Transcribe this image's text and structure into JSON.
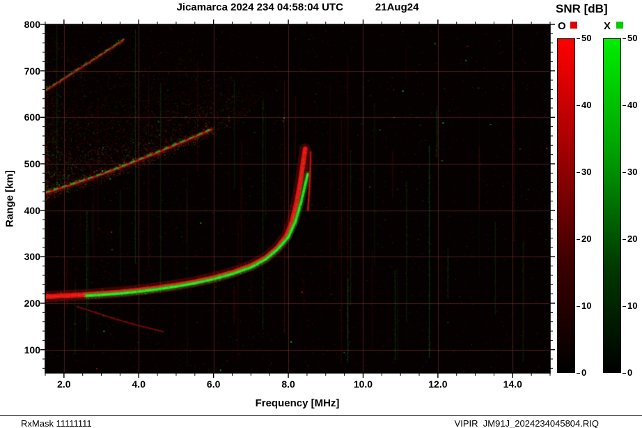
{
  "header": {
    "title": "Jicamarca 2024 234 04:58:04 UTC",
    "date": "21Aug24"
  },
  "colorbar": {
    "title": "SNR [dB]",
    "min": 0,
    "max": 50,
    "ticks": [
      0,
      10,
      20,
      30,
      40,
      50
    ],
    "bars": [
      {
        "label": "O",
        "chip": "#dd0000",
        "gradient": [
          "#000000 0%",
          "#3a0000 32%",
          "#a00000 66%",
          "#ff0000 100%"
        ]
      },
      {
        "label": "X",
        "chip": "#00cc00",
        "gradient": [
          "#000000 0%",
          "#003a00 32%",
          "#00a000 66%",
          "#00ee00 100%"
        ]
      }
    ]
  },
  "footer": {
    "left": "RxMask 11111111",
    "right": "VIPIR  JM91J_2024234045804.RIQ"
  },
  "chart_data": {
    "type": "heatmap",
    "title": "Jicamarca 2024 234 04:58:04 UTC 21Aug24",
    "xlabel": "Frequency [MHz]",
    "ylabel": "Range [km]",
    "xlim": [
      1.5,
      15.0
    ],
    "ylim": [
      50,
      800
    ],
    "x_minor_step": 0.5,
    "y_minor_step": 20,
    "xticks": [
      {
        "value": 2.0,
        "label": "2.0"
      },
      {
        "value": 4.0,
        "label": "4.0"
      },
      {
        "value": 6.0,
        "label": "6.0"
      },
      {
        "value": 8.0,
        "label": "8.0"
      },
      {
        "value": 10.0,
        "label": "10.0"
      },
      {
        "value": 12.0,
        "label": "12.0"
      },
      {
        "value": 14.0,
        "label": "14.0"
      }
    ],
    "yticks": [
      {
        "value": 100,
        "label": "100"
      },
      {
        "value": 200,
        "label": "200"
      },
      {
        "value": 300,
        "label": "300"
      },
      {
        "value": 400,
        "label": "400"
      },
      {
        "value": 500,
        "label": "500"
      },
      {
        "value": 600,
        "label": "600"
      },
      {
        "value": 700,
        "label": "700"
      },
      {
        "value": 800,
        "label": "800"
      }
    ],
    "grid": true,
    "grid_color": "rgba(150,65,60,0.45)",
    "background": "#060101",
    "noise": {
      "seed": 1234,
      "speckles": 7000,
      "streaks": 60,
      "sparse_bright": 30
    },
    "series": [
      {
        "name": "second-hop echo",
        "mode": "mixed",
        "color": "#aa1414",
        "width": 3,
        "scatter": 7,
        "alpha": 0.8,
        "overlay_color": "#22bb22",
        "overlay_width": 2,
        "overlay_alpha": 0.8,
        "points": [
          [
            1.5,
            437
          ],
          [
            2.0,
            450
          ],
          [
            2.5,
            463
          ],
          [
            3.0,
            477
          ],
          [
            3.5,
            492
          ],
          [
            4.0,
            508
          ],
          [
            4.5,
            524
          ],
          [
            5.0,
            541
          ],
          [
            5.5,
            558
          ],
          [
            5.95,
            574
          ]
        ]
      },
      {
        "name": "third-hop echo",
        "mode": "mixed",
        "color": "#991111",
        "width": 2.5,
        "scatter": 5,
        "alpha": 0.75,
        "overlay_color": "#1faa1f",
        "overlay_width": 1.5,
        "overlay_alpha": 0.65,
        "points": [
          [
            1.5,
            657
          ],
          [
            2.0,
            683
          ],
          [
            2.5,
            709
          ],
          [
            3.0,
            735
          ],
          [
            3.4,
            756
          ],
          [
            3.6,
            767
          ]
        ]
      },
      {
        "name": "descending low echo",
        "mode": "O",
        "color": "#7d100e",
        "width": 1.5,
        "scatter": 2.5,
        "alpha": 0.55,
        "points": [
          [
            2.35,
            193
          ],
          [
            2.8,
            181
          ],
          [
            3.3,
            168
          ],
          [
            3.8,
            156
          ],
          [
            4.3,
            146
          ],
          [
            4.65,
            139
          ]
        ]
      },
      {
        "name": "F-layer O-mode echo",
        "mode": "O",
        "color": "#dd1111",
        "width": 7,
        "scatter": 6,
        "alpha": 1,
        "speck_green": 0.22,
        "points": [
          [
            1.5,
            214
          ],
          [
            2.0,
            216
          ],
          [
            2.5,
            218
          ],
          [
            3.0,
            221
          ],
          [
            3.5,
            224
          ],
          [
            4.0,
            228
          ],
          [
            4.5,
            233
          ],
          [
            5.0,
            239
          ],
          [
            5.5,
            246
          ],
          [
            6.0,
            255
          ],
          [
            6.5,
            266
          ],
          [
            7.0,
            281
          ],
          [
            7.4,
            298
          ],
          [
            7.7,
            319
          ],
          [
            7.95,
            345
          ],
          [
            8.1,
            376
          ],
          [
            8.22,
            415
          ],
          [
            8.32,
            460
          ],
          [
            8.4,
            505
          ],
          [
            8.45,
            532
          ]
        ]
      },
      {
        "name": "F-layer X-mode echo",
        "mode": "X",
        "color": "#1ed41e",
        "width": 4,
        "scatter": 3.5,
        "alpha": 0.95,
        "points": [
          [
            2.6,
            216
          ],
          [
            3.0,
            218
          ],
          [
            3.5,
            221
          ],
          [
            4.0,
            225
          ],
          [
            4.5,
            230
          ],
          [
            5.0,
            236
          ],
          [
            5.5,
            243
          ],
          [
            6.0,
            252
          ],
          [
            6.5,
            263
          ],
          [
            7.0,
            277
          ],
          [
            7.4,
            295
          ],
          [
            7.7,
            315
          ],
          [
            8.0,
            342
          ],
          [
            8.2,
            378
          ],
          [
            8.35,
            420
          ],
          [
            8.45,
            455
          ],
          [
            8.52,
            478
          ]
        ]
      },
      {
        "name": "O-mode asymptote second branch",
        "mode": "O",
        "color": "#bb1111",
        "width": 2,
        "scatter": 2,
        "alpha": 0.85,
        "points": [
          [
            8.52,
            400
          ],
          [
            8.56,
            440
          ],
          [
            8.58,
            480
          ],
          [
            8.6,
            525
          ]
        ]
      }
    ],
    "diffuse_regions": [
      {
        "name": "spread-F speckle field",
        "lower": [
          [
            1.5,
            440
          ],
          [
            2.5,
            465
          ],
          [
            3.5,
            494
          ],
          [
            4.5,
            526
          ],
          [
            5.5,
            560
          ],
          [
            6.2,
            588
          ],
          [
            7.0,
            630
          ],
          [
            7.8,
            672
          ]
        ],
        "top": 778,
        "count": 5200,
        "f_bias": 1.5,
        "edge_bias": 1.7,
        "green_fraction": 0.3
      }
    ]
  }
}
